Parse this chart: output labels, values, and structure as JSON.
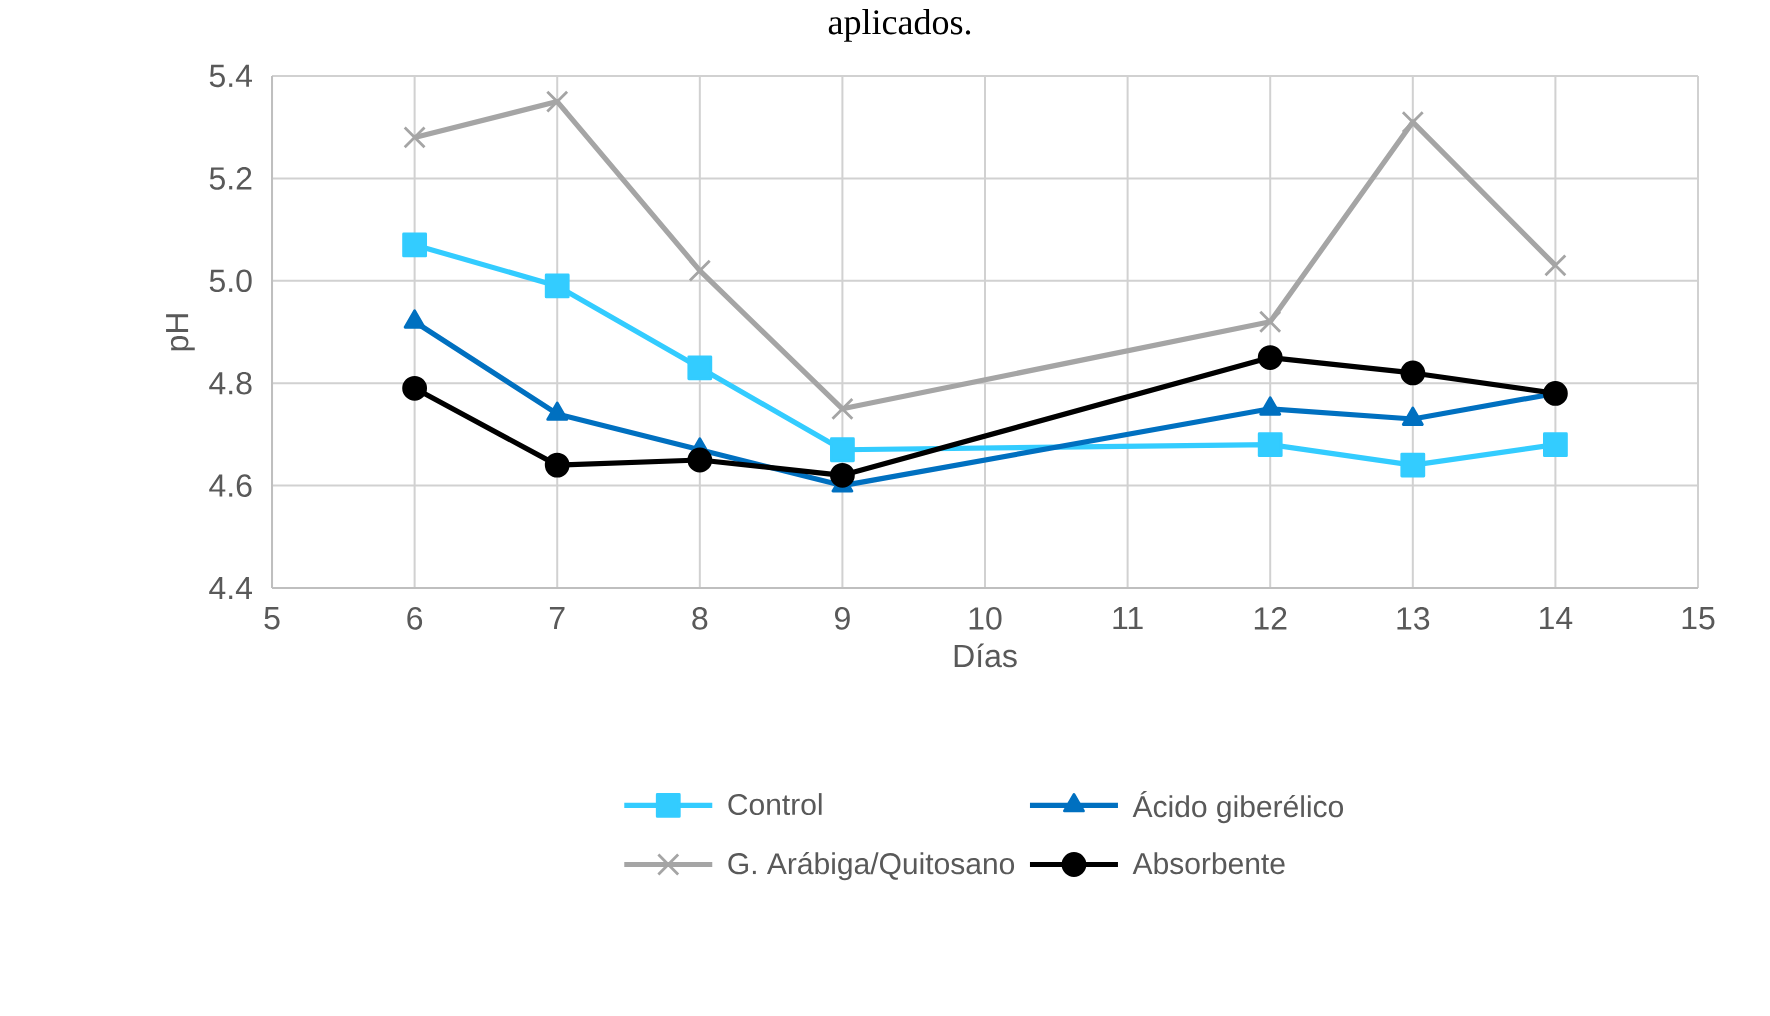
{
  "chart_data": {
    "type": "line",
    "title": "aplicados.",
    "xlabel": "Días",
    "ylabel": "pH",
    "x": [
      6,
      7,
      8,
      9,
      12,
      13,
      14
    ],
    "xlim": [
      5,
      15
    ],
    "xticks": [
      5,
      6,
      7,
      8,
      9,
      10,
      11,
      12,
      13,
      14,
      15
    ],
    "ylim": [
      4.4,
      5.4
    ],
    "yticks": [
      {
        "value": 4.4,
        "label": "4.4"
      },
      {
        "value": 4.6,
        "label": "4.6"
      },
      {
        "value": 4.8,
        "label": "4.8"
      },
      {
        "value": 5.0,
        "label": "5.0"
      },
      {
        "value": 5.2,
        "label": "5.2"
      },
      {
        "value": 5.4,
        "label": "5.4"
      }
    ],
    "grid": true,
    "legend": "bottom",
    "line_style": "solid",
    "series": [
      {
        "name": "Control",
        "color": "#33ccff",
        "marker": "square",
        "values": [
          5.07,
          4.99,
          4.83,
          4.67,
          4.68,
          4.64,
          4.68
        ]
      },
      {
        "name": "Ácido giberélico",
        "color": "#0070c0",
        "marker": "triangle",
        "values": [
          4.92,
          4.74,
          4.67,
          4.6,
          4.75,
          4.73,
          4.78
        ]
      },
      {
        "name": "G. Arábiga/Quitosano",
        "color": "#a5a5a5",
        "marker": "cross",
        "values": [
          5.28,
          5.35,
          5.02,
          4.75,
          4.92,
          5.31,
          5.03
        ]
      },
      {
        "name": "Absorbente",
        "color": "#000000",
        "marker": "circle",
        "values": [
          4.79,
          4.64,
          4.65,
          4.62,
          4.85,
          4.82,
          4.78
        ]
      }
    ]
  }
}
